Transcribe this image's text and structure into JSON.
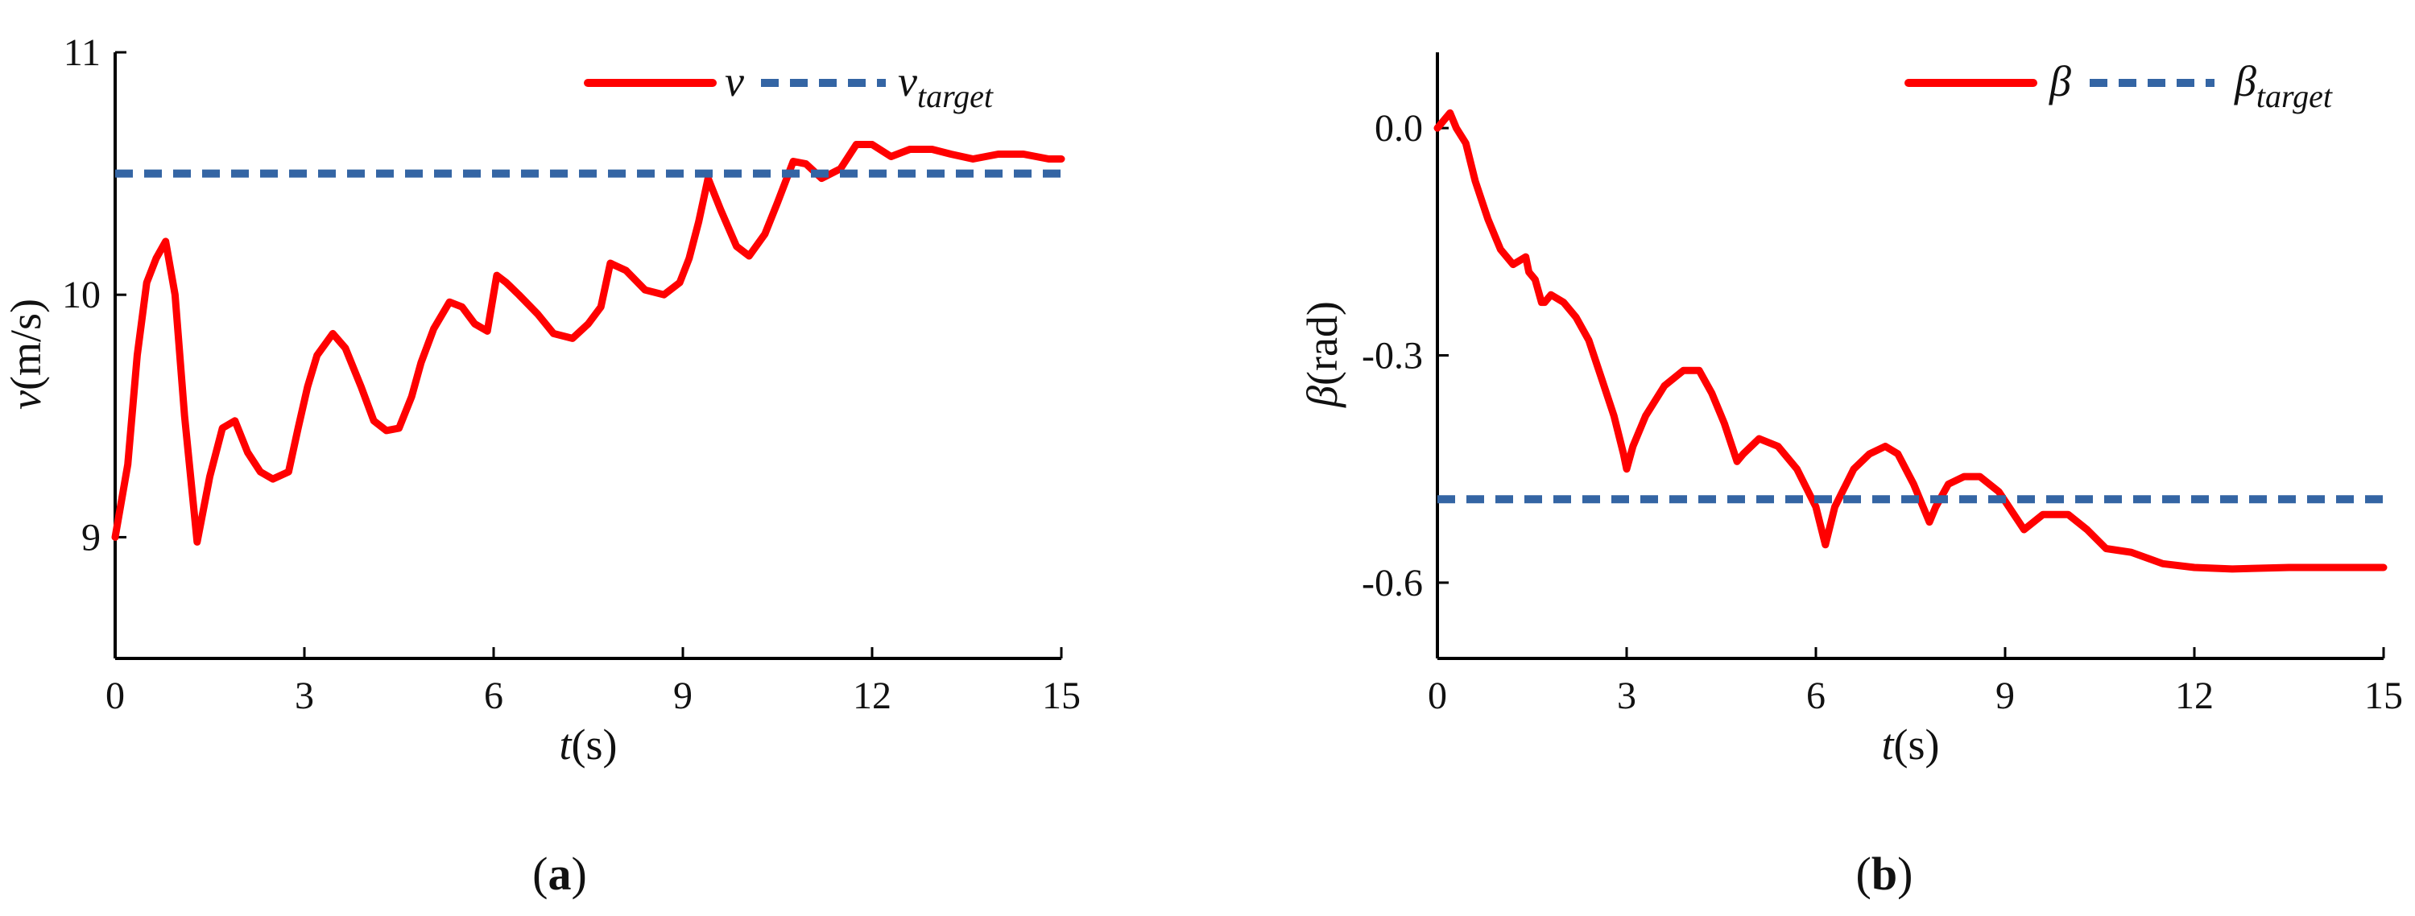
{
  "chart_data": [
    {
      "type": "line",
      "panel_label": "a",
      "xlabel": {
        "italic": "t",
        "unit": "(s)"
      },
      "ylabel": {
        "italic": "v",
        "unit": "(m/s)"
      },
      "xlim": [
        0,
        15
      ],
      "ylim": [
        8.5,
        11
      ],
      "xticks": [
        0,
        3,
        6,
        9,
        12,
        15
      ],
      "yticks": [
        9,
        10,
        11
      ],
      "legend_position": "top-right",
      "series": [
        {
          "name": "v",
          "style": "solid",
          "color": "#ff0000",
          "x": [
            0,
            0.2,
            0.35,
            0.5,
            0.65,
            0.8,
            0.95,
            1.1,
            1.3,
            1.5,
            1.7,
            1.9,
            2.1,
            2.3,
            2.5,
            2.75,
            2.9,
            3.05,
            3.2,
            3.45,
            3.65,
            3.9,
            4.1,
            4.3,
            4.5,
            4.7,
            4.85,
            5.05,
            5.3,
            5.5,
            5.7,
            5.9,
            6.05,
            6.2,
            6.4,
            6.7,
            6.95,
            7.25,
            7.5,
            7.7,
            7.85,
            8.1,
            8.4,
            8.7,
            8.95,
            9.1,
            9.25,
            9.4,
            9.6,
            9.85,
            10.05,
            10.3,
            10.5,
            10.75,
            10.95,
            11.2,
            11.5,
            11.75,
            12.0,
            12.3,
            12.6,
            12.95,
            13.25,
            13.6,
            14.0,
            14.4,
            14.8,
            15.0
          ],
          "values": [
            9.0,
            9.3,
            9.75,
            10.05,
            10.15,
            10.22,
            10.0,
            9.5,
            8.98,
            9.25,
            9.45,
            9.48,
            9.35,
            9.27,
            9.24,
            9.27,
            9.45,
            9.62,
            9.75,
            9.84,
            9.78,
            9.62,
            9.48,
            9.44,
            9.45,
            9.58,
            9.72,
            9.86,
            9.97,
            9.95,
            9.88,
            9.85,
            10.08,
            10.05,
            10.0,
            9.92,
            9.84,
            9.82,
            9.88,
            9.95,
            10.13,
            10.1,
            10.02,
            10.0,
            10.05,
            10.15,
            10.3,
            10.48,
            10.35,
            10.2,
            10.16,
            10.25,
            10.38,
            10.55,
            10.54,
            10.48,
            10.52,
            10.62,
            10.62,
            10.57,
            10.6,
            10.6,
            10.58,
            10.56,
            10.58,
            10.58,
            10.56,
            10.56
          ]
        },
        {
          "name": "v",
          "subscript": "target",
          "style": "dashed",
          "color": "#3465a4",
          "x": [
            0,
            15
          ],
          "values": [
            10.5,
            10.5
          ]
        }
      ]
    },
    {
      "type": "line",
      "panel_label": "b",
      "xlabel": {
        "italic": "t",
        "unit": "(s)"
      },
      "ylabel": {
        "italic": "β",
        "unit": "(rad)"
      },
      "xlim": [
        0,
        15
      ],
      "ylim": [
        -0.7,
        0.1
      ],
      "xticks": [
        0,
        3,
        6,
        9,
        12,
        15
      ],
      "yticks": [
        0.0,
        -0.3,
        -0.6
      ],
      "ytick_labels": [
        "0.0",
        "-0.3",
        "-0.6"
      ],
      "legend_position": "top-right",
      "series": [
        {
          "name": "β",
          "style": "solid",
          "color": "#ff0000",
          "x": [
            0,
            0.1,
            0.2,
            0.3,
            0.45,
            0.6,
            0.8,
            1.0,
            1.2,
            1.4,
            1.45,
            1.55,
            1.65,
            1.7,
            1.8,
            2.0,
            2.2,
            2.4,
            2.6,
            2.8,
            2.95,
            3.0,
            3.1,
            3.3,
            3.6,
            3.9,
            4.15,
            4.35,
            4.55,
            4.75,
            4.85,
            5.1,
            5.4,
            5.7,
            6.0,
            6.15,
            6.3,
            6.6,
            6.85,
            7.1,
            7.3,
            7.55,
            7.8,
            7.9,
            8.1,
            8.35,
            8.6,
            8.9,
            9.3,
            9.6,
            10.0,
            10.3,
            10.6,
            11.0,
            11.5,
            12.0,
            12.6,
            13.5,
            14.3,
            15.0
          ],
          "values": [
            0.0,
            0.01,
            0.02,
            0.0,
            -0.02,
            -0.07,
            -0.12,
            -0.16,
            -0.18,
            -0.17,
            -0.19,
            -0.2,
            -0.23,
            -0.23,
            -0.22,
            -0.23,
            -0.25,
            -0.28,
            -0.33,
            -0.38,
            -0.43,
            -0.45,
            -0.42,
            -0.38,
            -0.34,
            -0.32,
            -0.32,
            -0.35,
            -0.39,
            -0.44,
            -0.43,
            -0.41,
            -0.42,
            -0.45,
            -0.5,
            -0.55,
            -0.5,
            -0.45,
            -0.43,
            -0.42,
            -0.43,
            -0.47,
            -0.52,
            -0.5,
            -0.47,
            -0.46,
            -0.46,
            -0.48,
            -0.53,
            -0.51,
            -0.51,
            -0.53,
            -0.555,
            -0.56,
            -0.575,
            -0.58,
            -0.582,
            -0.58,
            -0.58,
            -0.58
          ]
        },
        {
          "name": "β",
          "subscript": "target",
          "style": "dashed",
          "color": "#3465a4",
          "x": [
            0,
            15
          ],
          "values": [
            -0.49,
            -0.49
          ]
        }
      ]
    }
  ]
}
